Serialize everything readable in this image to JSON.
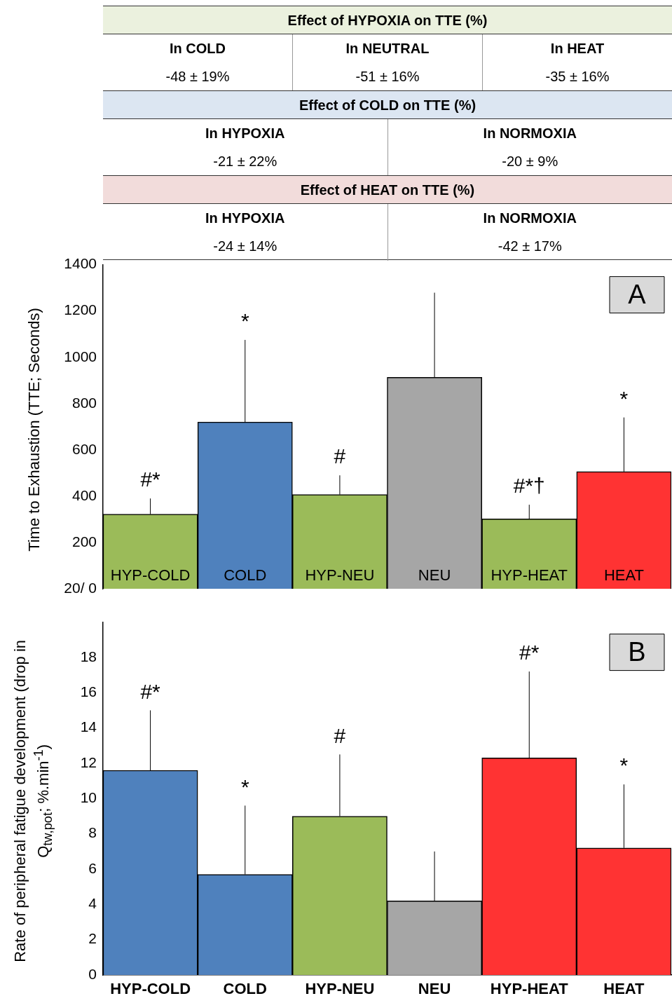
{
  "chart_data": [
    {
      "type": "other",
      "title": "Effect of HYPOXIA on TTE (%)",
      "annotations": [
        "In COLD",
        "-48 ± 19%",
        "In NEUTRAL",
        "-51 ± 16%",
        "In HEAT",
        "-35 ± 16%"
      ]
    },
    {
      "type": "other",
      "title": "Effect of COLD on TTE (%)",
      "annotations": [
        "In HYPOXIA",
        "-21 ± 22%",
        "In NORMOXIA",
        "-20 ± 9%"
      ]
    },
    {
      "type": "other",
      "title": "Effect of HEAT on TTE (%)",
      "annotations": [
        "In HYPOXIA",
        "-24 ± 14%",
        "In NORMOXIA",
        "-42 ± 17%"
      ]
    },
    {
      "type": "bar",
      "ylabel": "Time to Exhaustion (TTE; Seconds)",
      "categories": [
        "HYP-COLD",
        "COLD",
        "HYP-NEU",
        "NEU",
        "HYP-HEAT",
        "HEAT"
      ],
      "values": [
        322,
        720,
        407,
        913,
        302,
        506
      ],
      "errors": [
        [
          322,
          390
        ],
        [
          720,
          1075
        ],
        [
          407,
          490
        ],
        [
          913,
          1279
        ],
        [
          302,
          363
        ],
        [
          506,
          740
        ]
      ],
      "colors": [
        "#9bbb59",
        "#4f81bd",
        "#9bbb59",
        "#a6a6a6",
        "#9bbb59",
        "#ff3333"
      ],
      "ylim": [
        0,
        1400
      ],
      "yticks": [
        {
          "value": 0,
          "label": "20/ 0"
        },
        200,
        400,
        600,
        800,
        1000,
        1200,
        1400
      ],
      "grid": false,
      "annotations": [
        {
          "text": "#*",
          "x": "HYP-COLD",
          "y": 390
        },
        {
          "text": "*",
          "x": "COLD",
          "y": 1075
        },
        {
          "text": "#",
          "x": "HYP-NEU",
          "y": 490
        },
        {
          "text": "#*†",
          "x": "HYP-HEAT",
          "y": 363
        },
        {
          "text": "*",
          "x": "HEAT",
          "y": 740
        },
        "A"
      ]
    },
    {
      "type": "bar",
      "ylabel": "Rate of peripheral fatigue development (drop in Q$_{tw,pot}$; %.min$^{-1}$)",
      "categories": [
        "HYP-COLD",
        "COLD",
        "HYP-NEU",
        "NEU",
        "HYP-HEAT",
        "HEAT"
      ],
      "values": [
        11.6,
        5.7,
        9.0,
        4.2,
        12.3,
        7.2
      ],
      "errors": [
        [
          11.6,
          15.0
        ],
        [
          5.7,
          9.6
        ],
        [
          9.0,
          12.5
        ],
        [
          4.2,
          7.0
        ],
        [
          12.3,
          17.2
        ],
        [
          7.2,
          10.8
        ]
      ],
      "colors": [
        "#4f81bd",
        "#4f81bd",
        "#9bbb59",
        "#a6a6a6",
        "#ff3333",
        "#ff3333"
      ],
      "ylim": [
        0,
        20
      ],
      "yticks": [
        0,
        2,
        4,
        6,
        8,
        10,
        12,
        14,
        16,
        18
      ],
      "grid": false,
      "annotations": [
        {
          "text": "#*",
          "x": "HYP-COLD",
          "y": 15.0
        },
        {
          "text": "*",
          "x": "COLD",
          "y": 9.6
        },
        {
          "text": "#",
          "x": "HYP-NEU",
          "y": 12.5
        },
        {
          "text": "#*",
          "x": "HYP-HEAT",
          "y": 17.2
        },
        {
          "text": "*",
          "x": "HEAT",
          "y": 10.8
        },
        "B"
      ]
    }
  ]
}
